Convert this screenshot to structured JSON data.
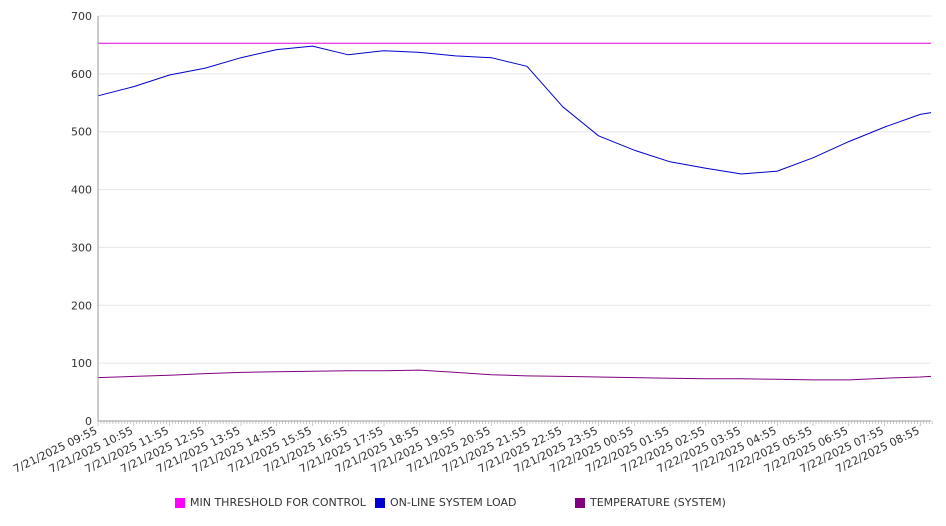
{
  "chart_data": {
    "type": "line",
    "ylim": [
      0,
      700
    ],
    "yticks": [
      0,
      100,
      200,
      300,
      400,
      500,
      600,
      700
    ],
    "xlabels": [
      "7/21/2025 09:55",
      "7/21/2025 10:55",
      "7/21/2025 11:55",
      "7/21/2025 12:55",
      "7/21/2025 13:55",
      "7/21/2025 14:55",
      "7/21/2025 15:55",
      "7/21/2025 16:55",
      "7/21/2025 17:55",
      "7/21/2025 18:55",
      "7/21/2025 19:55",
      "7/21/2025 20:55",
      "7/21/2025 21:55",
      "7/21/2025 22:55",
      "7/21/2025 23:55",
      "7/22/2025 00:55",
      "7/22/2025 01:55",
      "7/22/2025 02:55",
      "7/22/2025 03:55",
      "7/22/2025 04:55",
      "7/22/2025 05:55",
      "7/22/2025 06:55",
      "7/22/2025 07:55",
      "7/22/2025 08:55"
    ],
    "x_hours": [
      0,
      1,
      2,
      3,
      4,
      5,
      6,
      7,
      8,
      9,
      10,
      11,
      12,
      13,
      14,
      15,
      16,
      17,
      18,
      19,
      20,
      21,
      22,
      23,
      23.3
    ],
    "grid": true,
    "legend_position": "bottom",
    "series": [
      {
        "name": "MIN THRESHOLD FOR CONTROL",
        "color": "#dd00dd",
        "values": [
          653,
          653,
          653,
          653,
          653,
          653,
          653,
          653,
          653,
          653,
          653,
          653,
          653,
          653,
          653,
          653,
          653,
          653,
          653,
          653,
          653,
          653,
          653,
          653,
          653
        ]
      },
      {
        "name": "ON-LINE SYSTEM LOAD",
        "color": "#0000cc",
        "values": [
          562,
          578,
          598,
          610,
          628,
          642,
          648,
          633,
          640,
          637,
          631,
          628,
          613,
          543,
          493,
          468,
          448,
          437,
          427,
          432,
          455,
          483,
          508,
          530,
          533
        ]
      },
      {
        "name": "TEMPERATURE (SYSTEM)",
        "color": "#800080",
        "values": [
          75,
          77,
          79,
          82,
          84,
          85,
          86,
          87,
          87,
          88,
          84,
          80,
          78,
          77,
          76,
          75,
          74,
          73,
          73,
          72,
          71,
          71,
          74,
          76,
          77
        ]
      }
    ]
  }
}
